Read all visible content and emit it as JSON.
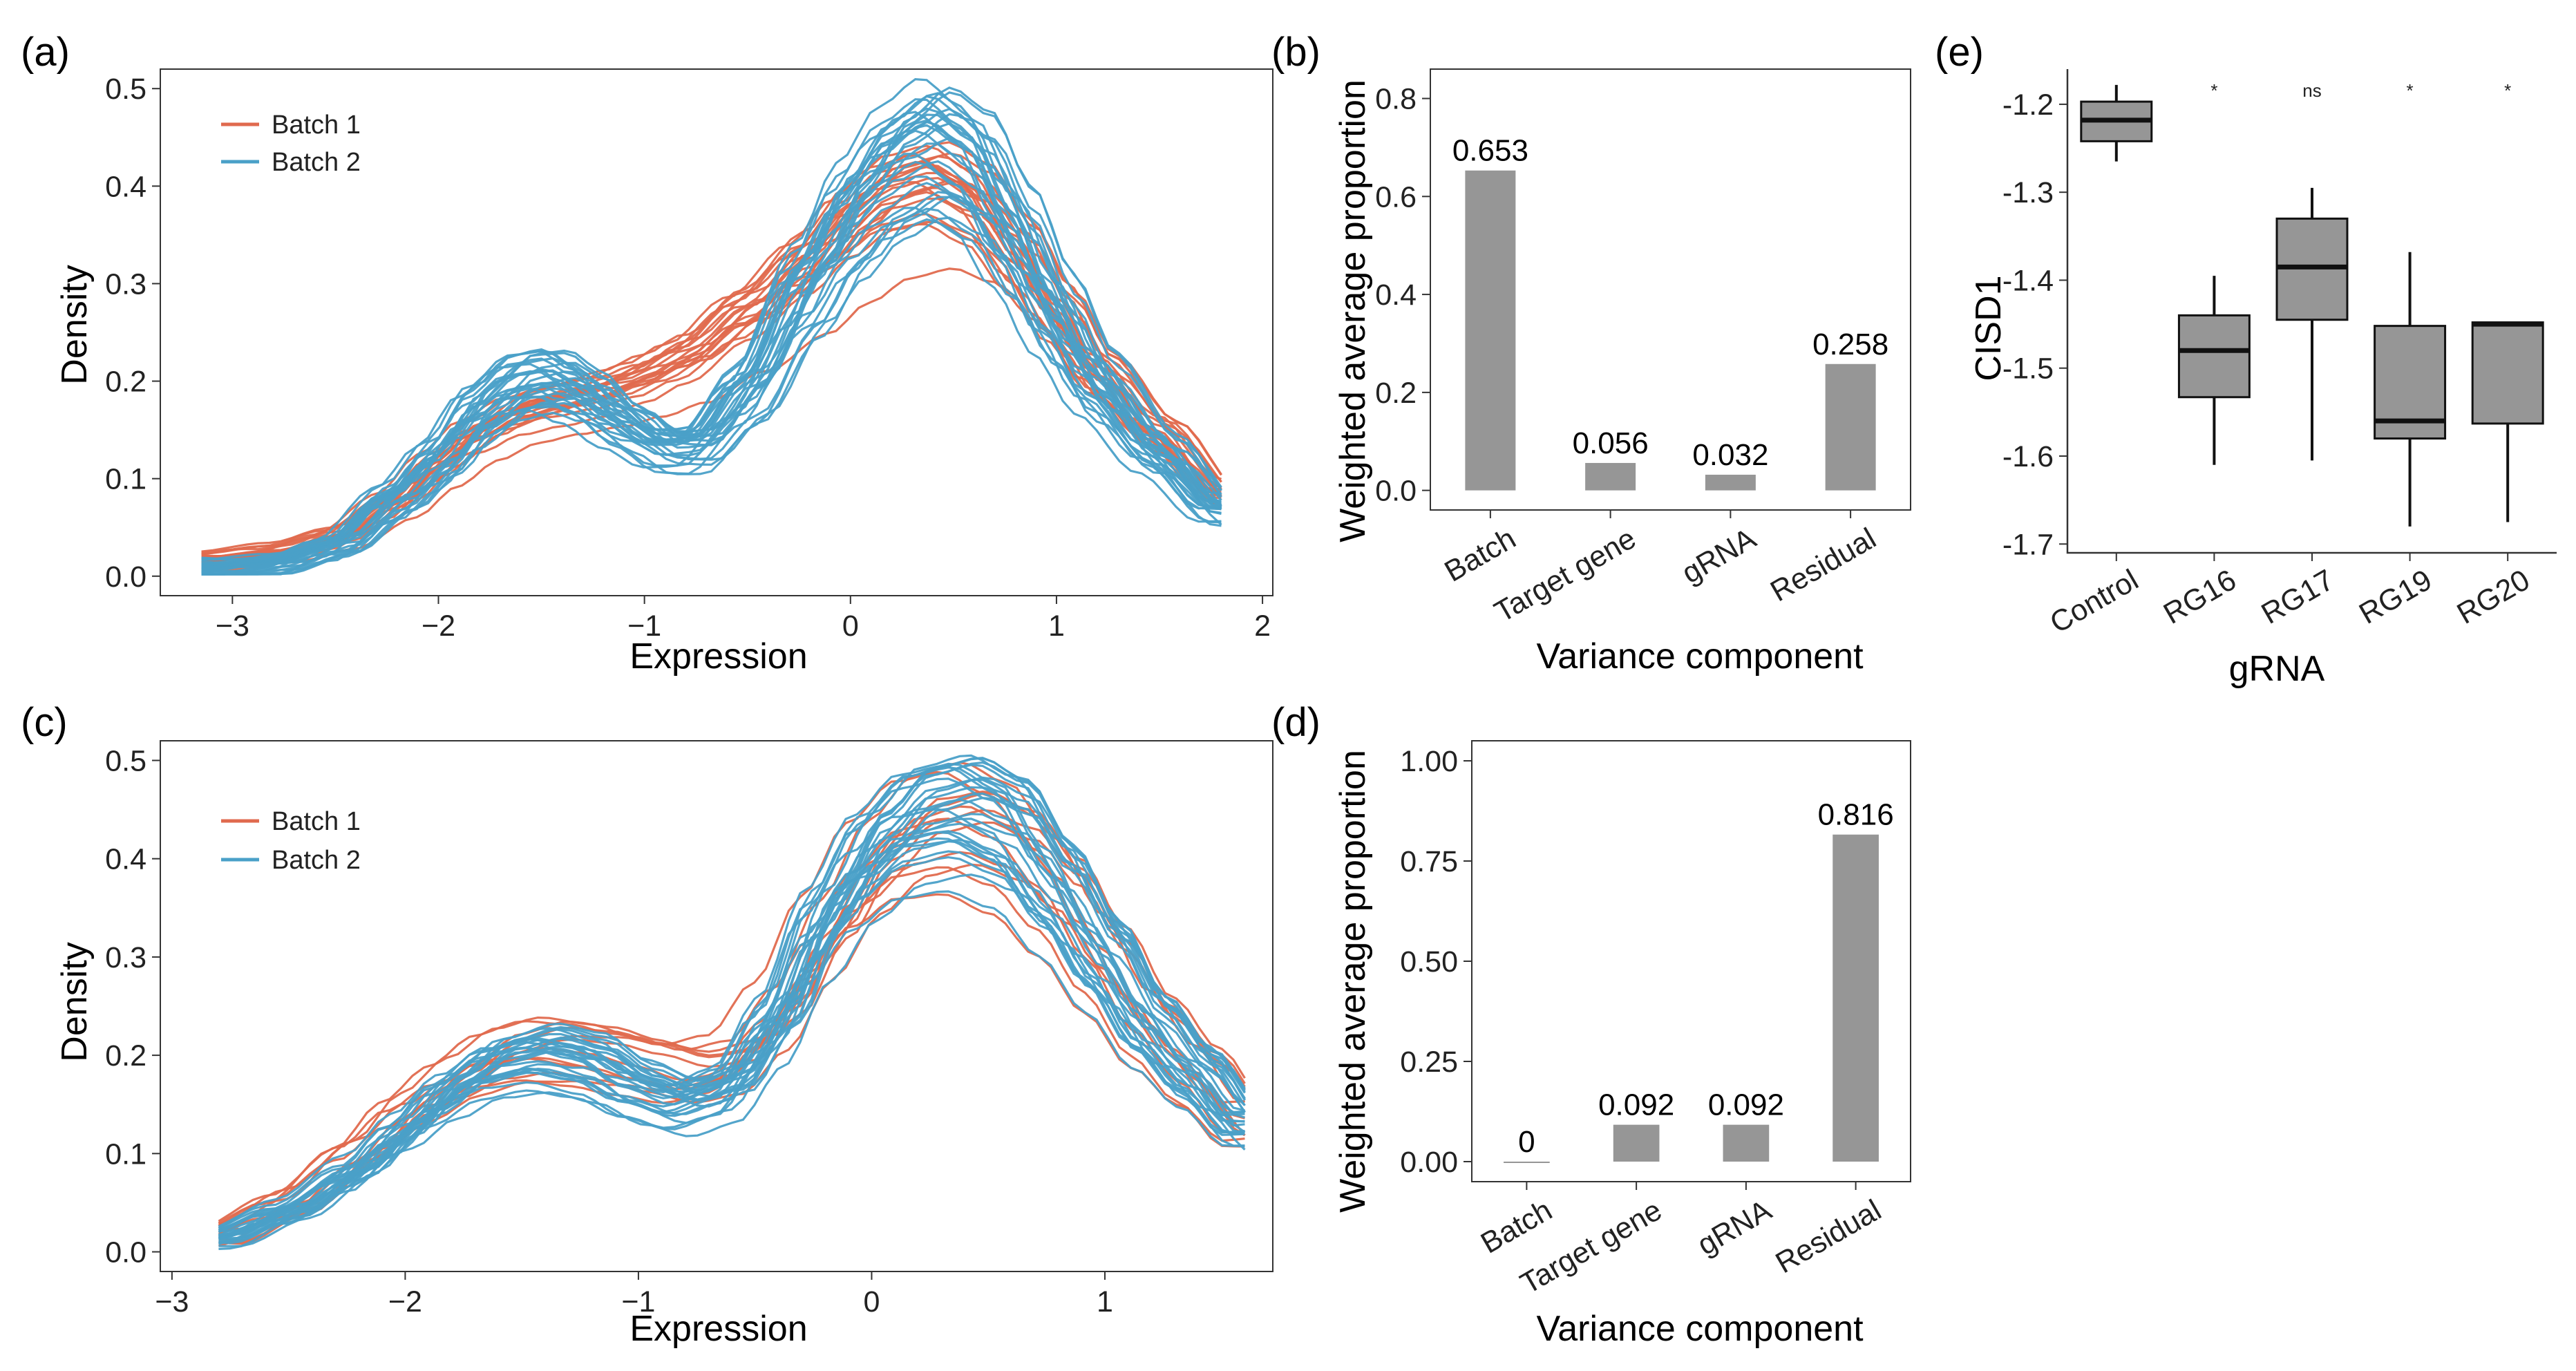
{
  "colors": {
    "batch1": "#e06a4e",
    "batch2": "#4aa0c8",
    "bar": "#969696",
    "box": "#969696"
  },
  "chart_data": [
    {
      "id": "a",
      "panel_label": "(a)",
      "type": "line",
      "title": "",
      "xlabel": "Expression",
      "ylabel": "Density",
      "xlim": [
        -3.35,
        2.05
      ],
      "ylim": [
        -0.02,
        0.52
      ],
      "xticks": [
        -3,
        -2,
        -1,
        0,
        1,
        2
      ],
      "yticks": [
        0.0,
        0.1,
        0.2,
        0.3,
        0.4,
        0.5
      ],
      "x_range": [
        -3.15,
        1.8
      ],
      "legend": [
        "Batch 1",
        "Batch 2"
      ],
      "legend_position": "top-left",
      "series": [
        {
          "name": "Batch 1",
          "color": "#e06a4e",
          "count": 20,
          "base": {
            "x": [
              -3.15,
              -2.8,
              -2.5,
              -2.2,
              -2.0,
              -1.8,
              -1.6,
              -1.4,
              -1.2,
              -1.0,
              -0.8,
              -0.5,
              -0.2,
              0.0,
              0.2,
              0.4,
              0.6,
              0.8,
              1.0,
              1.2,
              1.5,
              1.8
            ],
            "y": [
              0.018,
              0.025,
              0.04,
              0.075,
              0.11,
              0.14,
              0.16,
              0.17,
              0.18,
              0.195,
              0.215,
              0.26,
              0.31,
              0.35,
              0.38,
              0.39,
              0.37,
              0.32,
              0.26,
              0.2,
              0.14,
              0.08
            ]
          }
        },
        {
          "name": "Batch 2",
          "color": "#4aa0c8",
          "count": 30,
          "base": {
            "x": [
              -3.15,
              -2.8,
              -2.5,
              -2.2,
              -2.0,
              -1.8,
              -1.6,
              -1.45,
              -1.3,
              -1.1,
              -0.9,
              -0.75,
              -0.5,
              -0.2,
              0.0,
              0.2,
              0.4,
              0.6,
              0.8,
              1.0,
              1.2,
              1.5,
              1.8
            ],
            "y": [
              0.005,
              0.01,
              0.03,
              0.08,
              0.12,
              0.17,
              0.2,
              0.205,
              0.19,
              0.16,
              0.135,
              0.135,
              0.19,
              0.3,
              0.37,
              0.42,
              0.445,
              0.42,
              0.35,
              0.27,
              0.2,
              0.13,
              0.07
            ]
          }
        }
      ]
    },
    {
      "id": "b",
      "panel_label": "(b)",
      "type": "bar",
      "xlabel": "Variance component",
      "ylabel": "Weighted average proportion",
      "categories": [
        "Batch",
        "Target gene",
        "gRNA",
        "Residual"
      ],
      "values": [
        0.653,
        0.056,
        0.032,
        0.258
      ],
      "value_labels": [
        "0.653",
        "0.056",
        "0.032",
        "0.258"
      ],
      "ylim": [
        -0.04,
        0.86
      ],
      "yticks": [
        0.0,
        0.2,
        0.4,
        0.6,
        0.8
      ],
      "ytick_labels": [
        "0.0",
        "0.2",
        "0.4",
        "0.6",
        "0.8"
      ]
    },
    {
      "id": "c",
      "panel_label": "(c)",
      "type": "line",
      "title": "",
      "xlabel": "Expression",
      "ylabel": "Density",
      "xlim": [
        -3.05,
        1.72
      ],
      "ylim": [
        -0.02,
        0.52
      ],
      "xticks": [
        -3,
        -2,
        -1,
        0,
        1
      ],
      "yticks": [
        0.0,
        0.1,
        0.2,
        0.3,
        0.4,
        0.5
      ],
      "x_range": [
        -2.8,
        1.6
      ],
      "legend": [
        "Batch 1",
        "Batch 2"
      ],
      "legend_position": "top-left",
      "series": [
        {
          "name": "Batch 1",
          "color": "#e06a4e",
          "count": 12,
          "base": {
            "x": [
              -2.8,
              -2.5,
              -2.2,
              -2.0,
              -1.8,
              -1.6,
              -1.4,
              -1.2,
              -1.0,
              -0.8,
              -0.6,
              -0.4,
              -0.2,
              0.0,
              0.2,
              0.4,
              0.6,
              0.8,
              1.0,
              1.2,
              1.4,
              1.6
            ],
            "y": [
              0.02,
              0.05,
              0.1,
              0.14,
              0.17,
              0.195,
              0.205,
              0.2,
              0.19,
              0.18,
              0.19,
              0.24,
              0.32,
              0.39,
              0.43,
              0.44,
              0.42,
              0.37,
              0.3,
              0.23,
              0.18,
              0.13
            ]
          }
        },
        {
          "name": "Batch 2",
          "color": "#4aa0c8",
          "count": 28,
          "base": {
            "x": [
              -2.8,
              -2.5,
              -2.2,
              -2.0,
              -1.8,
              -1.6,
              -1.4,
              -1.2,
              -1.0,
              -0.8,
              -0.6,
              -0.4,
              -0.2,
              0.0,
              0.2,
              0.4,
              0.6,
              0.8,
              1.0,
              1.2,
              1.4,
              1.6
            ],
            "y": [
              0.015,
              0.04,
              0.08,
              0.12,
              0.16,
              0.19,
              0.2,
              0.19,
              0.165,
              0.15,
              0.165,
              0.23,
              0.33,
              0.4,
              0.44,
              0.45,
              0.43,
              0.37,
              0.3,
              0.23,
              0.18,
              0.13
            ]
          }
        }
      ]
    },
    {
      "id": "d",
      "panel_label": "(d)",
      "type": "bar",
      "xlabel": "Variance component",
      "ylabel": "Weighted average proportion",
      "categories": [
        "Batch",
        "Target gene",
        "gRNA",
        "Residual"
      ],
      "values": [
        0,
        0.092,
        0.092,
        0.816
      ],
      "value_labels": [
        "0",
        "0.092",
        "0.092",
        "0.816"
      ],
      "ylim": [
        -0.05,
        1.05
      ],
      "yticks": [
        0.0,
        0.25,
        0.5,
        0.75,
        1.0
      ],
      "ytick_labels": [
        "0.00",
        "0.25",
        "0.50",
        "0.75",
        "1.00"
      ]
    },
    {
      "id": "e",
      "panel_label": "(e)",
      "type": "box",
      "xlabel": "gRNA",
      "ylabel": "CISD1",
      "categories": [
        "Control",
        "RG16",
        "RG17",
        "RG19",
        "RG20"
      ],
      "ylim": [
        -1.71,
        -1.16
      ],
      "yticks": [
        -1.2,
        -1.3,
        -1.4,
        -1.5,
        -1.6,
        -1.7
      ],
      "ytick_labels": [
        "-1.2",
        "-1.3",
        "-1.4",
        "-1.5",
        "-1.6",
        "-1.7"
      ],
      "boxes": [
        {
          "min": -1.265,
          "q1": -1.242,
          "median": -1.218,
          "q3": -1.197,
          "max": -1.178
        },
        {
          "min": -1.61,
          "q1": -1.533,
          "median": -1.48,
          "q3": -1.44,
          "max": -1.395
        },
        {
          "min": -1.605,
          "q1": -1.445,
          "median": -1.385,
          "q3": -1.33,
          "max": -1.295
        },
        {
          "min": -1.68,
          "q1": -1.58,
          "median": -1.56,
          "q3": -1.452,
          "max": -1.368
        },
        {
          "min": -1.675,
          "q1": -1.563,
          "median": -1.45,
          "q3": -1.448,
          "max": -1.448
        }
      ],
      "significance": [
        "",
        "*",
        "ns",
        "*",
        "*"
      ]
    }
  ]
}
